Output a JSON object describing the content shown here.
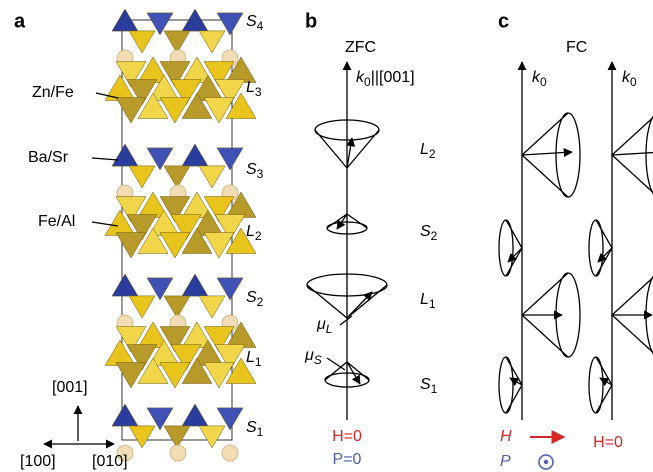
{
  "panel_a": {
    "label": "a",
    "atoms": [
      "Zn/Fe",
      "Ba/Sr",
      "Fe/Al"
    ],
    "layers": [
      {
        "letter": "S",
        "sub": "4"
      },
      {
        "letter": "L",
        "sub": "3"
      },
      {
        "letter": "S",
        "sub": "3"
      },
      {
        "letter": "L",
        "sub": "2"
      },
      {
        "letter": "S",
        "sub": "2"
      },
      {
        "letter": "L",
        "sub": "1"
      },
      {
        "letter": "S",
        "sub": "1"
      }
    ],
    "axes": [
      "[001]",
      "[100]",
      "[010]"
    ]
  },
  "panel_b": {
    "label": "b",
    "title": "ZFC",
    "axis": {
      "letter": "k",
      "sub": "0",
      "rest": "||[001]"
    },
    "cones": [
      {
        "letter": "L",
        "sub": "2"
      },
      {
        "letter": "S",
        "sub": "2"
      },
      {
        "letter": "L",
        "sub": "1"
      },
      {
        "letter": "S",
        "sub": "1"
      }
    ],
    "moments": [
      {
        "letter": "μ",
        "sub": "L"
      },
      {
        "letter": "μ",
        "sub": "S"
      }
    ],
    "field": "H=0",
    "pressure": "P=0"
  },
  "panel_c": {
    "label": "c",
    "title": "FC",
    "axes": [
      {
        "letter": "k",
        "sub": "0"
      },
      {
        "letter": "k",
        "sub": "0"
      }
    ],
    "field": "H",
    "pressure": "P",
    "field_right": "H=0"
  }
}
